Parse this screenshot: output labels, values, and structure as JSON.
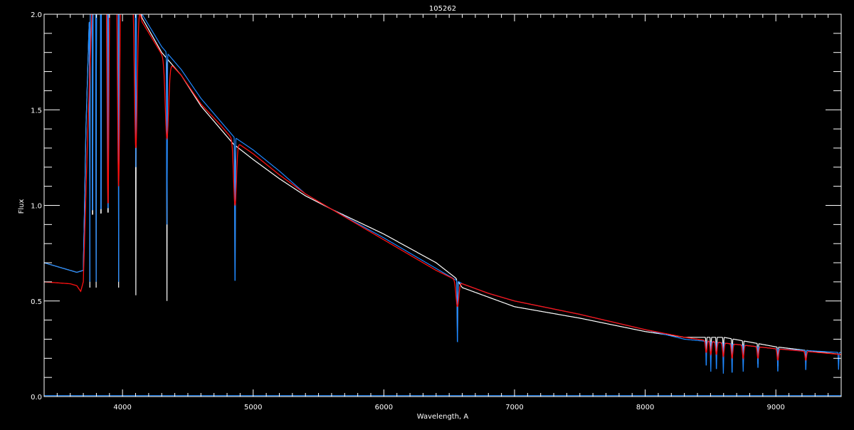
{
  "chart_data": {
    "type": "line",
    "title": "105262",
    "xlabel": "Wavelength, A",
    "ylabel": "Flux",
    "xlim": [
      3400,
      9500
    ],
    "ylim": [
      0.0,
      2.0
    ],
    "xticks": [
      4000,
      5000,
      6000,
      7000,
      8000,
      9000
    ],
    "xtick_labels": [
      "4000",
      "5000",
      "6000",
      "7000",
      "8000",
      "9000"
    ],
    "yticks": [
      0.0,
      0.5,
      1.0,
      1.5,
      2.0
    ],
    "ytick_labels": [
      "0.0",
      "0.5",
      "1.0",
      "1.5",
      "2.0"
    ],
    "x_minor_step": 100,
    "y_minor_step": 0.1,
    "grid": false,
    "background": "#000000",
    "series": [
      {
        "color": "#ffffff",
        "continuum": [
          [
            3400,
            0.7
          ],
          [
            3650,
            0.65
          ],
          [
            3700,
            0.66
          ],
          [
            3720,
            1.4
          ],
          [
            3760,
            2.3
          ],
          [
            4000,
            2.4
          ],
          [
            4150,
            1.98
          ],
          [
            4300,
            1.8
          ],
          [
            4450,
            1.68
          ],
          [
            4600,
            1.52
          ],
          [
            4750,
            1.4
          ],
          [
            4850,
            1.32
          ],
          [
            5000,
            1.24
          ],
          [
            5200,
            1.14
          ],
          [
            5400,
            1.05
          ],
          [
            5600,
            0.98
          ],
          [
            6000,
            0.85
          ],
          [
            6400,
            0.7
          ],
          [
            6550,
            0.62
          ],
          [
            6600,
            0.57
          ],
          [
            6800,
            0.52
          ],
          [
            7000,
            0.47
          ],
          [
            7500,
            0.41
          ],
          [
            8000,
            0.34
          ],
          [
            8300,
            0.31
          ],
          [
            8600,
            0.31
          ],
          [
            9000,
            0.26
          ],
          [
            9500,
            0.22
          ]
        ],
        "lines": [
          [
            3750,
            0.57,
            2
          ],
          [
            3771,
            0.57,
            2
          ],
          [
            3798,
            0.57,
            2
          ],
          [
            3835,
            0.57,
            2
          ],
          [
            3889,
            0.57,
            2
          ],
          [
            3970,
            0.57,
            2
          ],
          [
            4102,
            0.53,
            2
          ],
          [
            4340,
            0.5,
            2
          ],
          [
            4861,
            0.43,
            2
          ],
          [
            6563,
            0.3,
            3
          ],
          [
            8467,
            0.22,
            3
          ],
          [
            8502,
            0.2,
            3
          ],
          [
            8545,
            0.2,
            3
          ],
          [
            8598,
            0.2,
            3
          ],
          [
            8665,
            0.18,
            3
          ],
          [
            8750,
            0.17,
            3
          ],
          [
            8863,
            0.16,
            3
          ],
          [
            9015,
            0.15,
            3
          ],
          [
            9229,
            0.17,
            3
          ]
        ]
      },
      {
        "color": "#1e88ff",
        "continuum": [
          [
            3400,
            0.7
          ],
          [
            3650,
            0.65
          ],
          [
            3700,
            0.66
          ],
          [
            3720,
            1.4
          ],
          [
            3760,
            2.3
          ],
          [
            4000,
            2.4
          ],
          [
            4150,
            2.0
          ],
          [
            4300,
            1.83
          ],
          [
            4450,
            1.71
          ],
          [
            4600,
            1.56
          ],
          [
            4750,
            1.44
          ],
          [
            4850,
            1.36
          ],
          [
            5000,
            1.29
          ],
          [
            5200,
            1.18
          ],
          [
            5400,
            1.06
          ],
          [
            5600,
            0.98
          ],
          [
            6000,
            0.83
          ],
          [
            6400,
            0.67
          ],
          [
            6550,
            0.61
          ],
          [
            6600,
            0.59
          ],
          [
            6800,
            0.54
          ],
          [
            7000,
            0.5
          ],
          [
            7500,
            0.43
          ],
          [
            8000,
            0.35
          ],
          [
            8300,
            0.3
          ],
          [
            8600,
            0.28
          ],
          [
            9000,
            0.25
          ],
          [
            9500,
            0.23
          ]
        ],
        "lines": [
          [
            3750,
            0.6,
            2
          ],
          [
            3771,
            0.6,
            2
          ],
          [
            3798,
            0.6,
            2
          ],
          [
            3835,
            0.6,
            2
          ],
          [
            3889,
            0.6,
            2
          ],
          [
            3970,
            0.6,
            2
          ],
          [
            4102,
            1.2,
            3
          ],
          [
            4340,
            0.9,
            3
          ],
          [
            4861,
            0.52,
            3
          ],
          [
            6563,
            0.25,
            3
          ],
          [
            8467,
            0.15,
            3
          ],
          [
            8502,
            0.13,
            3
          ],
          [
            8545,
            0.13,
            3
          ],
          [
            8598,
            0.12,
            3
          ],
          [
            8665,
            0.11,
            3
          ],
          [
            8750,
            0.13,
            3
          ],
          [
            8863,
            0.14,
            3
          ],
          [
            9015,
            0.12,
            3
          ],
          [
            9229,
            0.13,
            3
          ],
          [
            9480,
            0.14,
            3
          ]
        ]
      },
      {
        "color": "#ff1010",
        "continuum": [
          [
            3400,
            0.6
          ],
          [
            3600,
            0.59
          ],
          [
            3650,
            0.58
          ],
          [
            3680,
            0.55
          ],
          [
            3700,
            0.6
          ],
          [
            3730,
            1.3
          ],
          [
            3780,
            2.3
          ],
          [
            4000,
            2.4
          ],
          [
            4150,
            1.96
          ],
          [
            4300,
            1.79
          ],
          [
            4450,
            1.68
          ],
          [
            4600,
            1.53
          ],
          [
            4750,
            1.42
          ],
          [
            4850,
            1.34
          ],
          [
            5000,
            1.27
          ],
          [
            5200,
            1.16
          ],
          [
            5400,
            1.06
          ],
          [
            5600,
            0.98
          ],
          [
            6000,
            0.82
          ],
          [
            6400,
            0.66
          ],
          [
            6550,
            0.61
          ],
          [
            6600,
            0.59
          ],
          [
            6800,
            0.54
          ],
          [
            7000,
            0.5
          ],
          [
            7500,
            0.43
          ],
          [
            8000,
            0.35
          ],
          [
            8300,
            0.31
          ],
          [
            8600,
            0.28
          ],
          [
            9000,
            0.25
          ],
          [
            9500,
            0.22
          ]
        ],
        "lines": [
          [
            3889,
            1.0,
            10
          ],
          [
            3970,
            1.1,
            12
          ],
          [
            4102,
            1.3,
            15
          ],
          [
            4340,
            1.35,
            18
          ],
          [
            4861,
            1.0,
            15
          ],
          [
            6563,
            0.47,
            15
          ],
          [
            8467,
            0.23,
            8
          ],
          [
            8502,
            0.22,
            8
          ],
          [
            8545,
            0.22,
            8
          ],
          [
            8598,
            0.21,
            8
          ],
          [
            8665,
            0.2,
            8
          ],
          [
            8750,
            0.2,
            8
          ],
          [
            8863,
            0.2,
            8
          ],
          [
            9015,
            0.19,
            8
          ],
          [
            9229,
            0.19,
            8
          ]
        ]
      },
      {
        "color": "#1e88ff",
        "continuum": [
          [
            3400,
            0.005
          ],
          [
            9500,
            0.005
          ]
        ],
        "lines": []
      }
    ]
  }
}
